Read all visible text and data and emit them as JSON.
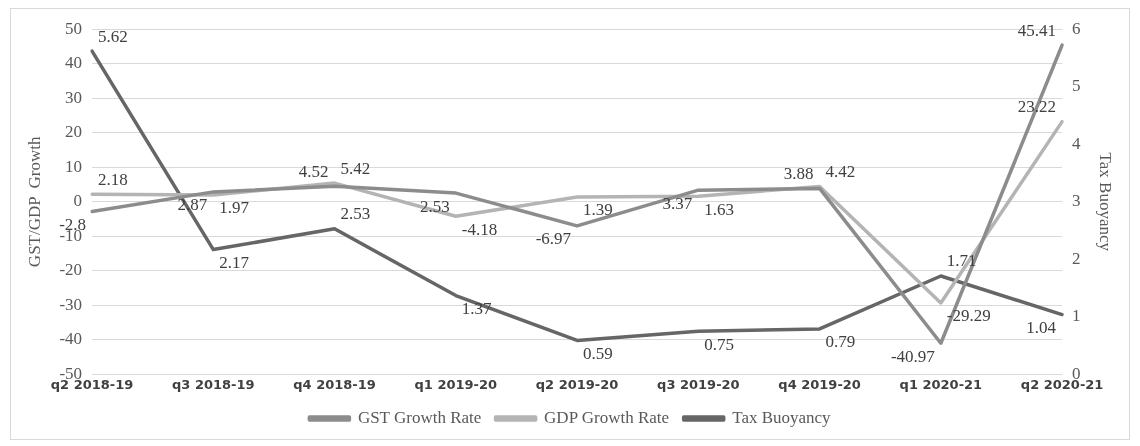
{
  "chart_data": {
    "type": "line",
    "categories": [
      "q2 2018-19",
      "q3 2018-19",
      "q4 2018-19",
      "q1 2019-20",
      "q2 2019-20",
      "q3 2019-20",
      "q4 2019-20",
      "q1 2020-21",
      "q2 2020-21"
    ],
    "series": [
      {
        "name": "GST Growth Rate",
        "color": "#8c8c8c",
        "values": [
          -2.8,
          2.87,
          4.52,
          2.53,
          -6.97,
          3.37,
          3.88,
          -40.97,
          45.41
        ]
      },
      {
        "name": "GDP Growth Rate",
        "color": "#b4b4b4",
        "values": [
          2.18,
          1.97,
          5.42,
          -4.18,
          1.39,
          1.63,
          4.42,
          -29.29,
          23.22
        ]
      },
      {
        "name": "Tax Buoyancy",
        "color": "#666666",
        "axis": "y2",
        "values": [
          5.62,
          2.17,
          2.53,
          1.37,
          0.59,
          0.75,
          0.79,
          1.71,
          1.04
        ]
      }
    ],
    "ylabel": "GST/GDP  Growth",
    "y2label": "Tax Buoyancy",
    "ylim": [
      -50,
      50
    ],
    "yticks": [
      -50,
      -40,
      -30,
      -20,
      -10,
      0,
      10,
      20,
      30,
      40,
      50
    ],
    "y2lim": [
      0,
      6
    ],
    "y2ticks": [
      0,
      1,
      2,
      3,
      4,
      5,
      6
    ],
    "grid": "y",
    "legend": "bottom",
    "marker": "none",
    "line_style": "solid",
    "data_labels": true
  }
}
